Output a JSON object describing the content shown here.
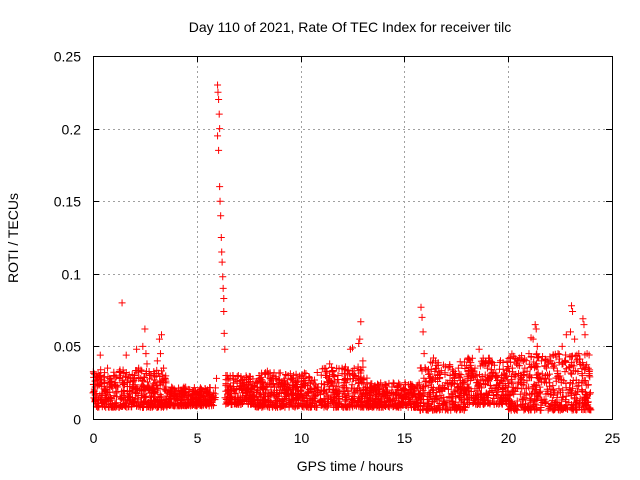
{
  "chart_data": {
    "type": "scatter",
    "title": "Day 110 of 2021, Rate Of TEC Index for receiver tilc",
    "xlabel": "GPS time / hours",
    "ylabel": "ROTI / TECUs",
    "xlim": [
      0,
      25
    ],
    "ylim": [
      0,
      0.25
    ],
    "xticks": [
      0,
      5,
      10,
      15,
      20,
      25
    ],
    "xtick_labels": [
      "0",
      "5",
      "10",
      "15",
      "20",
      "25"
    ],
    "yticks": [
      0,
      0.05,
      0.1,
      0.15,
      0.2,
      0.25
    ],
    "ytick_labels": [
      "0",
      "0.05",
      "0.1",
      "0.15",
      "0.2",
      "0.25"
    ],
    "grid": true,
    "marker": "+",
    "color": "#ff0000",
    "series": [
      {
        "name": "ROTI",
        "points": [
          [
            0.0,
            0.018
          ],
          [
            0.1,
            0.022
          ],
          [
            0.2,
            0.015
          ],
          [
            0.3,
            0.03
          ],
          [
            0.35,
            0.044
          ],
          [
            0.4,
            0.025
          ],
          [
            0.5,
            0.012
          ],
          [
            0.6,
            0.02
          ],
          [
            0.7,
            0.035
          ],
          [
            0.8,
            0.028
          ],
          [
            0.9,
            0.014
          ],
          [
            1.0,
            0.03
          ],
          [
            1.1,
            0.018
          ],
          [
            1.2,
            0.022
          ],
          [
            1.3,
            0.032
          ],
          [
            1.4,
            0.08
          ],
          [
            1.5,
            0.025
          ],
          [
            1.6,
            0.044
          ],
          [
            1.7,
            0.015
          ],
          [
            1.8,
            0.028
          ],
          [
            1.9,
            0.02
          ],
          [
            2.0,
            0.03
          ],
          [
            2.1,
            0.048
          ],
          [
            2.2,
            0.035
          ],
          [
            2.3,
            0.028
          ],
          [
            2.4,
            0.05
          ],
          [
            2.5,
            0.062
          ],
          [
            2.55,
            0.045
          ],
          [
            2.6,
            0.038
          ],
          [
            2.7,
            0.022
          ],
          [
            2.8,
            0.03
          ],
          [
            2.9,
            0.018
          ],
          [
            3.0,
            0.025
          ],
          [
            3.1,
            0.04
          ],
          [
            3.2,
            0.055
          ],
          [
            3.25,
            0.045
          ],
          [
            3.3,
            0.058
          ],
          [
            3.4,
            0.035
          ],
          [
            3.5,
            0.022
          ],
          [
            3.7,
            0.018
          ],
          [
            3.9,
            0.02
          ],
          [
            4.0,
            0.015
          ],
          [
            4.2,
            0.018
          ],
          [
            4.4,
            0.021
          ],
          [
            4.6,
            0.016
          ],
          [
            4.8,
            0.019
          ],
          [
            5.0,
            0.017
          ],
          [
            5.2,
            0.015
          ],
          [
            5.4,
            0.02
          ],
          [
            5.6,
            0.018
          ],
          [
            5.8,
            0.016
          ],
          [
            5.95,
            0.028
          ],
          [
            6.0,
            0.23
          ],
          [
            6.02,
            0.225
          ],
          [
            6.05,
            0.22
          ],
          [
            6.08,
            0.21
          ],
          [
            6.1,
            0.2
          ],
          [
            6.0,
            0.195
          ],
          [
            6.05,
            0.185
          ],
          [
            6.1,
            0.16
          ],
          [
            6.12,
            0.15
          ],
          [
            6.15,
            0.14
          ],
          [
            6.18,
            0.125
          ],
          [
            6.2,
            0.115
          ],
          [
            6.22,
            0.108
          ],
          [
            6.25,
            0.098
          ],
          [
            6.27,
            0.09
          ],
          [
            6.3,
            0.083
          ],
          [
            6.3,
            0.074
          ],
          [
            6.32,
            0.059
          ],
          [
            6.35,
            0.048
          ],
          [
            6.4,
            0.03
          ],
          [
            6.5,
            0.022
          ],
          [
            6.6,
            0.028
          ],
          [
            6.8,
            0.02
          ],
          [
            7.0,
            0.03
          ],
          [
            7.2,
            0.018
          ],
          [
            7.4,
            0.025
          ],
          [
            7.6,
            0.015
          ],
          [
            7.8,
            0.022
          ],
          [
            8.0,
            0.03
          ],
          [
            8.2,
            0.025
          ],
          [
            8.4,
            0.033
          ],
          [
            8.6,
            0.018
          ],
          [
            8.8,
            0.028
          ],
          [
            9.0,
            0.02
          ],
          [
            9.2,
            0.025
          ],
          [
            9.4,
            0.03
          ],
          [
            9.6,
            0.018
          ],
          [
            9.8,
            0.022
          ],
          [
            10.0,
            0.02
          ],
          [
            10.2,
            0.016
          ],
          [
            10.4,
            0.025
          ],
          [
            10.6,
            0.018
          ],
          [
            10.8,
            0.022
          ],
          [
            11.0,
            0.02
          ],
          [
            11.2,
            0.03
          ],
          [
            11.4,
            0.038
          ],
          [
            11.5,
            0.025
          ],
          [
            11.6,
            0.02
          ],
          [
            11.8,
            0.03
          ],
          [
            12.0,
            0.035
          ],
          [
            12.2,
            0.025
          ],
          [
            12.4,
            0.048
          ],
          [
            12.5,
            0.049
          ],
          [
            12.6,
            0.03
          ],
          [
            12.8,
            0.052
          ],
          [
            12.85,
            0.055
          ],
          [
            12.9,
            0.067
          ],
          [
            13.0,
            0.04
          ],
          [
            13.2,
            0.025
          ],
          [
            13.4,
            0.02
          ],
          [
            13.6,
            0.022
          ],
          [
            13.8,
            0.018
          ],
          [
            14.0,
            0.02
          ],
          [
            14.2,
            0.015
          ],
          [
            14.4,
            0.022
          ],
          [
            14.6,
            0.018
          ],
          [
            14.8,
            0.016
          ],
          [
            15.0,
            0.02
          ],
          [
            15.2,
            0.018
          ],
          [
            15.4,
            0.016
          ],
          [
            15.6,
            0.022
          ],
          [
            15.8,
            0.077
          ],
          [
            15.85,
            0.07
          ],
          [
            15.9,
            0.06
          ],
          [
            15.95,
            0.045
          ],
          [
            16.0,
            0.035
          ],
          [
            16.2,
            0.028
          ],
          [
            16.4,
            0.042
          ],
          [
            16.5,
            0.04
          ],
          [
            16.6,
            0.03
          ],
          [
            16.8,
            0.02
          ],
          [
            17.0,
            0.025
          ],
          [
            17.2,
            0.03
          ],
          [
            17.4,
            0.028
          ],
          [
            17.6,
            0.035
          ],
          [
            17.8,
            0.025
          ],
          [
            18.0,
            0.02
          ],
          [
            18.2,
            0.03
          ],
          [
            18.4,
            0.035
          ],
          [
            18.6,
            0.048
          ],
          [
            18.8,
            0.04
          ],
          [
            19.0,
            0.035
          ],
          [
            19.2,
            0.038
          ],
          [
            19.4,
            0.03
          ],
          [
            19.6,
            0.025
          ],
          [
            19.8,
            0.028
          ],
          [
            20.0,
            0.022
          ],
          [
            20.2,
            0.035
          ],
          [
            20.4,
            0.038
          ],
          [
            20.6,
            0.03
          ],
          [
            20.8,
            0.035
          ],
          [
            21.0,
            0.045
          ],
          [
            21.1,
            0.056
          ],
          [
            21.2,
            0.055
          ],
          [
            21.3,
            0.065
          ],
          [
            21.35,
            0.062
          ],
          [
            21.4,
            0.05
          ],
          [
            21.6,
            0.04
          ],
          [
            21.8,
            0.03
          ],
          [
            22.0,
            0.025
          ],
          [
            22.2,
            0.035
          ],
          [
            22.4,
            0.045
          ],
          [
            22.6,
            0.05
          ],
          [
            22.8,
            0.058
          ],
          [
            23.0,
            0.06
          ],
          [
            23.05,
            0.078
          ],
          [
            23.1,
            0.074
          ],
          [
            23.2,
            0.055
          ],
          [
            23.4,
            0.045
          ],
          [
            23.6,
            0.069
          ],
          [
            23.65,
            0.065
          ],
          [
            23.7,
            0.058
          ],
          [
            23.8,
            0.045
          ],
          [
            23.9,
            0.03
          ]
        ],
        "dense_bands": [
          {
            "x_from": 0.0,
            "x_to": 3.6,
            "y_min": 0.008,
            "y_max": 0.034
          },
          {
            "x_from": 3.6,
            "x_to": 5.9,
            "y_min": 0.009,
            "y_max": 0.022
          },
          {
            "x_from": 6.3,
            "x_to": 7.8,
            "y_min": 0.01,
            "y_max": 0.03
          },
          {
            "x_from": 7.8,
            "x_to": 11.0,
            "y_min": 0.008,
            "y_max": 0.032
          },
          {
            "x_from": 11.0,
            "x_to": 13.2,
            "y_min": 0.008,
            "y_max": 0.036
          },
          {
            "x_from": 13.2,
            "x_to": 15.7,
            "y_min": 0.008,
            "y_max": 0.025
          },
          {
            "x_from": 15.7,
            "x_to": 18.0,
            "y_min": 0.006,
            "y_max": 0.04
          },
          {
            "x_from": 18.0,
            "x_to": 20.0,
            "y_min": 0.01,
            "y_max": 0.042
          },
          {
            "x_from": 20.0,
            "x_to": 24.0,
            "y_min": 0.006,
            "y_max": 0.045
          }
        ]
      }
    ]
  }
}
